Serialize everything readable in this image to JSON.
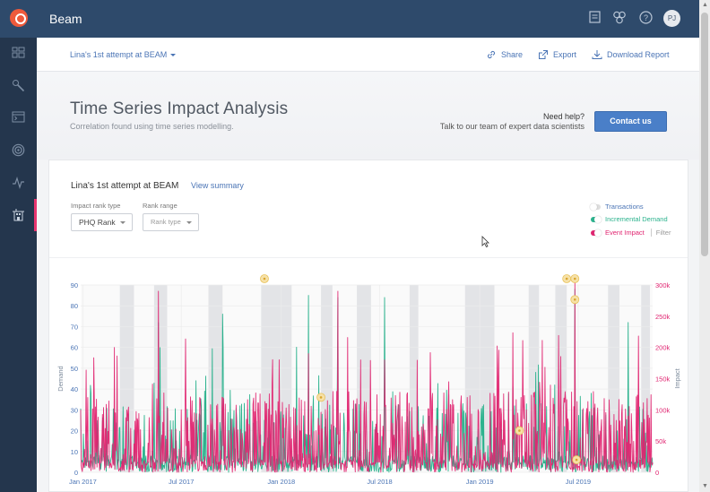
{
  "app": {
    "title": "Beam",
    "avatar_initials": "PJ"
  },
  "header": {
    "project_name": "Lina's 1st attempt at BEAM",
    "actions": {
      "share": "Share",
      "export": "Export",
      "download": "Download Report"
    }
  },
  "intro": {
    "title": "Time Series Impact Analysis",
    "subtitle": "Correlation found using time series modelling.",
    "help_title": "Need help?",
    "help_text": "Talk to our team of expert data scientists",
    "contact_button": "Contact us"
  },
  "card": {
    "title": "Lina's 1st attempt at BEAM",
    "view_summary": "View summary",
    "impact_rank_type_label": "Impact rank type",
    "impact_rank_type_value": "PHQ Rank",
    "rank_range_label": "Rank range",
    "rank_range_placeholder": "Rank type",
    "legend": [
      {
        "label": "Transactions",
        "state": "off",
        "color": "#bbbbbb",
        "text_color": "#4a74b5"
      },
      {
        "label": "Incremental Demand",
        "state": "on",
        "color": "#2bb28d",
        "text_color": "#2bb28d"
      },
      {
        "label": "Event Impact",
        "state": "on",
        "color": "#e02470",
        "text_color": "#e02470"
      }
    ],
    "filter_label": "Filter"
  },
  "colors": {
    "accent": "#4a7fc8",
    "demand": "#2bb28d",
    "impact": "#e02470",
    "topbar": "#2e4a6b",
    "sidebar": "#24364d"
  },
  "sidebar": {
    "items": [
      "dashboard-icon",
      "tools-icon",
      "console-icon",
      "target-icon",
      "pulse-icon",
      "building-icon"
    ],
    "active": 5
  },
  "chart_data": {
    "type": "line",
    "ylabel": "Demand",
    "y2label": "Impact",
    "x_ticks": [
      "Jan 2017",
      "Jul 2017",
      "Jan 2018",
      "Jul 2018",
      "Jan 2019",
      "Jul 2019"
    ],
    "y_ticks": [
      "0",
      "10",
      "20",
      "30",
      "40",
      "50",
      "60",
      "70",
      "80",
      "90"
    ],
    "y2_ticks": [
      "0",
      "50k",
      "100k",
      "150k",
      "200k",
      "250k",
      "300k"
    ],
    "ylim": [
      0,
      90
    ],
    "y2lim": [
      0,
      300000
    ],
    "xlim": [
      "2016-12-28",
      "2019-11-15"
    ],
    "series": [
      {
        "name": "Incremental Demand",
        "color": "#2bb28d",
        "axis": "left"
      },
      {
        "name": "Event Impact",
        "color": "#e02470",
        "axis": "right"
      }
    ],
    "shaded_periods": [
      [
        "2017-03-10",
        "2017-04-05"
      ],
      [
        "2017-05-12",
        "2017-06-05"
      ],
      [
        "2017-08-20",
        "2017-09-15"
      ],
      [
        "2017-11-25",
        "2018-01-20"
      ],
      [
        "2018-03-15",
        "2018-04-05"
      ],
      [
        "2018-05-20",
        "2018-06-15"
      ],
      [
        "2018-08-25",
        "2018-09-10"
      ],
      [
        "2018-12-05",
        "2019-01-28"
      ],
      [
        "2019-04-01",
        "2019-04-20"
      ],
      [
        "2019-05-20",
        "2019-06-10"
      ],
      [
        "2019-08-25",
        "2019-09-15"
      ],
      [
        "2019-10-25",
        "2019-11-10"
      ]
    ],
    "peaks": [
      {
        "x": "2017-02-28",
        "demand": 29,
        "impact": 200000
      },
      {
        "x": "2017-05-20",
        "demand": 72,
        "impact": 290000
      },
      {
        "x": "2017-09-15",
        "demand": 76,
        "impact": 120000
      },
      {
        "x": "2018-02-20",
        "demand": 85,
        "impact": 190000
      },
      {
        "x": "2018-04-15",
        "demand": 84,
        "impact": 290000
      },
      {
        "x": "2018-07-10",
        "demand": 84,
        "impact": 180000
      },
      {
        "x": "2019-06-25",
        "demand": 88,
        "impact": 305000
      },
      {
        "x": "2019-10-01",
        "demand": 72,
        "impact": 90000
      }
    ],
    "markers": [
      {
        "x": "2017-12-01",
        "y": 90
      },
      {
        "x": "2018-03-15",
        "y": 36
      },
      {
        "x": "2019-03-15",
        "y": 20
      },
      {
        "x": "2019-06-10",
        "y": 90
      },
      {
        "x": "2019-06-25",
        "y": 90
      },
      {
        "x": "2019-06-25",
        "y": 83
      },
      {
        "x": "2019-06-28",
        "y": 6
      }
    ]
  }
}
